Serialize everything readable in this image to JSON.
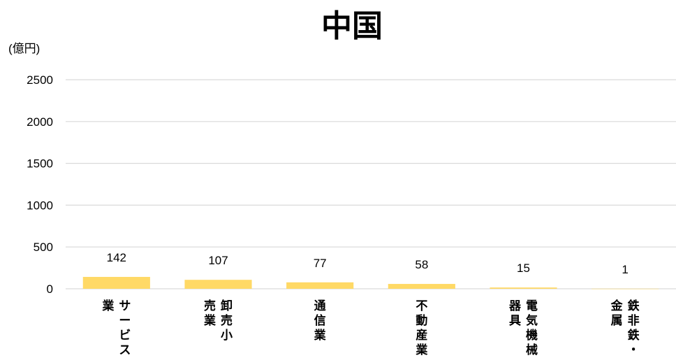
{
  "chart_data": {
    "type": "bar",
    "title": "中国",
    "ylabel": "(億円)",
    "xlabel": "",
    "ylim": [
      0,
      2500
    ],
    "yticks": [
      0,
      500,
      1000,
      1500,
      2000,
      2500
    ],
    "grid": true,
    "legend": "none",
    "bar_color": "#FFD966",
    "categories": [
      "サービス業",
      "卸売小売業",
      "通信業",
      "不動産業",
      "電気機械器具",
      "鉄非鉄・金属"
    ],
    "category_label_columns": [
      [
        "サービス",
        "業"
      ],
      [
        "卸売小",
        "売業"
      ],
      [
        "通信業"
      ],
      [
        "不動産業"
      ],
      [
        "電気機械",
        "器具"
      ],
      [
        "鉄非鉄・",
        "金属"
      ]
    ],
    "values": [
      142,
      107,
      77,
      58,
      15,
      1
    ],
    "data_labels": [
      "142",
      "107",
      "77",
      "58",
      "15",
      "1"
    ]
  }
}
